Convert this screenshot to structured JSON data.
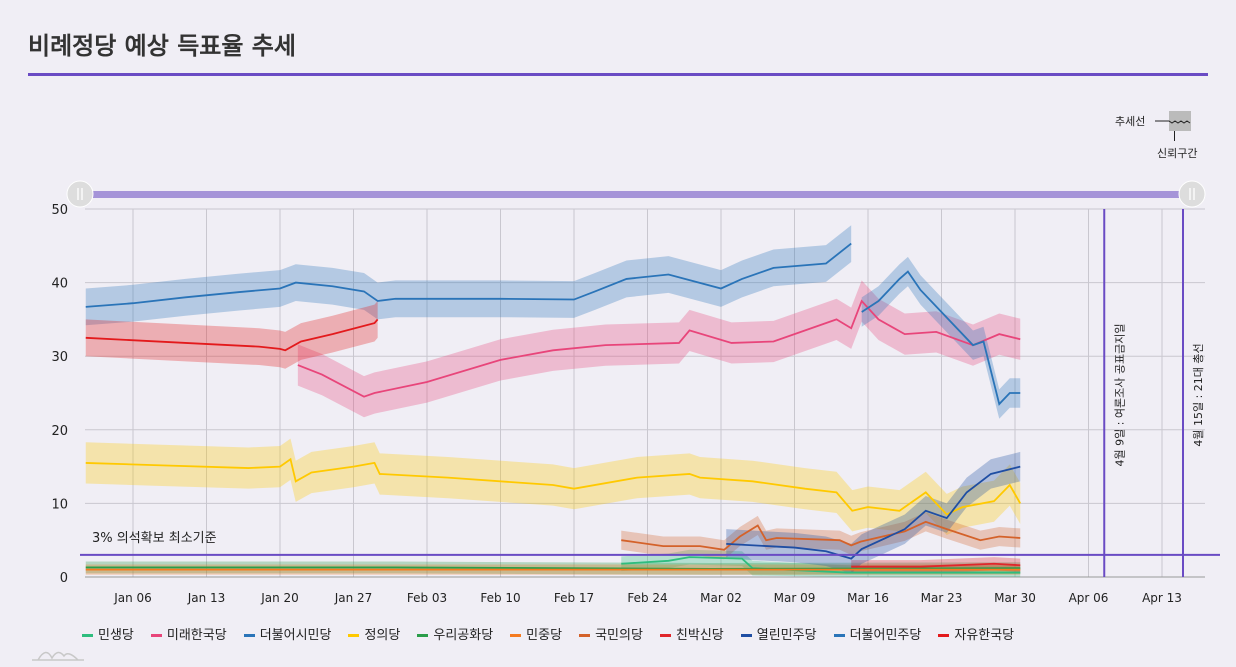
{
  "title": "비례정당 예상 득표율 추세",
  "trend_legend": {
    "line": "추세선",
    "band": "신뢰구간"
  },
  "chart_data": {
    "type": "line",
    "x_unit": "day of 2020 (0 = Jan 01)",
    "xlim": [
      0.4,
      107
    ],
    "ylim": [
      0,
      50
    ],
    "yticks": [
      0,
      10,
      20,
      30,
      40,
      50
    ],
    "xticks": [
      {
        "d": 5,
        "label": "Jan 06"
      },
      {
        "d": 12,
        "label": "Jan 13"
      },
      {
        "d": 19,
        "label": "Jan 20"
      },
      {
        "d": 26,
        "label": "Jan 27"
      },
      {
        "d": 33,
        "label": "Feb 03"
      },
      {
        "d": 40,
        "label": "Feb 10"
      },
      {
        "d": 47,
        "label": "Feb 17"
      },
      {
        "d": 54,
        "label": "Feb 24"
      },
      {
        "d": 61,
        "label": "Mar 02"
      },
      {
        "d": 68,
        "label": "Mar 09"
      },
      {
        "d": 75,
        "label": "Mar 16"
      },
      {
        "d": 82,
        "label": "Mar 23"
      },
      {
        "d": 89,
        "label": "Mar 30"
      },
      {
        "d": 96,
        "label": "Apr 06"
      },
      {
        "d": 103,
        "label": "Apr 13"
      }
    ],
    "threshold": {
      "value": 3,
      "label": "3% 의석확보 최소기준",
      "color": "#6a4bc4"
    },
    "events": [
      {
        "d": 97.5,
        "label": "4월 9일 : 여론조사 공표금지일"
      },
      {
        "d": 105,
        "label": "4월 15일 : 21대 총선"
      }
    ],
    "grid": true,
    "legend_position": "bottom",
    "series": [
      {
        "name": "민생당",
        "color": "#2ebd7e",
        "band": 1,
        "points": [
          [
            51.5,
            1.8
          ],
          [
            56,
            2.2
          ],
          [
            58,
            2.7
          ],
          [
            63,
            2.5
          ],
          [
            64,
            1.2
          ],
          [
            73,
            0.6
          ],
          [
            89.5,
            0.6
          ]
        ]
      },
      {
        "name": "미래한국당",
        "color": "#e8457a",
        "band": 2.8,
        "points": [
          [
            20.7,
            28.8
          ],
          [
            23,
            27.5
          ],
          [
            27,
            24.5
          ],
          [
            28,
            25
          ],
          [
            33,
            26.5
          ],
          [
            40,
            29.5
          ],
          [
            45,
            30.8
          ],
          [
            50,
            31.5
          ],
          [
            57,
            31.8
          ],
          [
            58,
            33.5
          ],
          [
            62,
            31.8
          ],
          [
            66,
            32
          ],
          [
            70,
            34
          ],
          [
            72,
            35
          ],
          [
            73.4,
            33.8
          ],
          [
            74.4,
            37.5
          ],
          [
            76,
            35
          ],
          [
            78.5,
            33
          ],
          [
            81.5,
            33.3
          ],
          [
            85,
            31.5
          ],
          [
            87.5,
            33
          ],
          [
            89.5,
            32.3
          ]
        ]
      },
      {
        "name": "더불어시민당",
        "color": "#2a74b8",
        "band": 2.5,
        "points": [
          [
            0.5,
            36.7
          ],
          [
            5,
            37.2
          ],
          [
            10,
            38
          ],
          [
            15,
            38.7
          ],
          [
            19,
            39.2
          ],
          [
            20.5,
            40
          ],
          [
            24,
            39.5
          ],
          [
            27,
            38.8
          ],
          [
            28.3,
            37.5
          ],
          [
            30,
            37.8
          ],
          [
            40,
            37.8
          ],
          [
            47,
            37.7
          ],
          [
            49,
            38.8
          ],
          [
            52,
            40.5
          ],
          [
            56,
            41.1
          ],
          [
            61,
            39.2
          ],
          [
            63,
            40.5
          ],
          [
            66,
            42
          ],
          [
            71,
            42.6
          ],
          [
            73.4,
            45.3
          ]
        ]
      },
      {
        "name": "정의당",
        "color": "#ffc900",
        "band": 2.8,
        "points": [
          [
            0.5,
            15.5
          ],
          [
            7,
            15.2
          ],
          [
            16,
            14.8
          ],
          [
            19,
            15
          ],
          [
            20,
            16
          ],
          [
            20.5,
            13
          ],
          [
            22,
            14.2
          ],
          [
            26,
            15
          ],
          [
            28,
            15.5
          ],
          [
            28.5,
            14
          ],
          [
            35,
            13.5
          ],
          [
            45,
            12.5
          ],
          [
            47,
            12
          ],
          [
            53,
            13.5
          ],
          [
            58,
            14
          ],
          [
            59,
            13.5
          ],
          [
            64,
            13
          ],
          [
            69,
            12
          ],
          [
            72,
            11.5
          ],
          [
            73.5,
            9
          ],
          [
            75,
            9.5
          ],
          [
            78,
            9
          ],
          [
            80.5,
            11.5
          ],
          [
            82.5,
            8.5
          ],
          [
            84,
            9.5
          ],
          [
            87,
            10.3
          ],
          [
            88.5,
            12.5
          ],
          [
            89.5,
            10
          ]
        ]
      },
      {
        "name": "우리공화당",
        "color": "#2a9d4a",
        "band": 0.8,
        "points": [
          [
            0.5,
            1.3
          ],
          [
            30,
            1.3
          ],
          [
            60,
            1.1
          ],
          [
            89.5,
            1.2
          ]
        ]
      },
      {
        "name": "민중당",
        "color": "#f57b20",
        "band": 0.7,
        "points": [
          [
            0.5,
            1
          ],
          [
            89.5,
            1
          ]
        ]
      },
      {
        "name": "국민의당",
        "color": "#d4622a",
        "band": 1.3,
        "points": [
          [
            51.5,
            5
          ],
          [
            55.5,
            4.2
          ],
          [
            59,
            4.2
          ],
          [
            61.3,
            3.7
          ],
          [
            62.8,
            5.5
          ],
          [
            64.5,
            7
          ],
          [
            65.3,
            5
          ],
          [
            66.3,
            5.3
          ],
          [
            72.3,
            5
          ],
          [
            73.4,
            4.3
          ],
          [
            74.3,
            4.8
          ],
          [
            78.5,
            6.2
          ],
          [
            80.5,
            7.5
          ],
          [
            82.5,
            6.5
          ],
          [
            85.7,
            5
          ],
          [
            87.5,
            5.5
          ],
          [
            89.5,
            5.3
          ]
        ]
      },
      {
        "name": "친박신당",
        "color": "#e0262b",
        "band": 0.9,
        "points": [
          [
            73.4,
            1.4
          ],
          [
            80,
            1.4
          ],
          [
            87,
            1.8
          ],
          [
            89.5,
            1.6
          ]
        ]
      },
      {
        "name": "열린민주당",
        "color": "#1f4ea3",
        "band": 2,
        "points": [
          [
            61.5,
            4.5
          ],
          [
            68,
            4
          ],
          [
            71,
            3.5
          ],
          [
            73.4,
            2.5
          ],
          [
            74.4,
            3.8
          ],
          [
            78.5,
            6.5
          ],
          [
            80.5,
            9
          ],
          [
            82.5,
            8
          ],
          [
            84.4,
            11.5
          ],
          [
            86.7,
            14
          ],
          [
            89.5,
            15
          ]
        ]
      },
      {
        "name": "더불어민주당",
        "color": "#2a74b8",
        "band": 2,
        "points": [
          [
            74.4,
            36
          ],
          [
            76,
            37.5
          ],
          [
            78,
            40.5
          ],
          [
            78.8,
            41.5
          ],
          [
            80,
            39
          ],
          [
            85,
            31.5
          ],
          [
            86,
            32
          ],
          [
            87.5,
            23.5
          ],
          [
            88.5,
            25
          ],
          [
            89.5,
            25
          ]
        ]
      },
      {
        "name": "자유한국당",
        "color": "#e31a1c",
        "band": 2.5,
        "points": [
          [
            0.5,
            32.5
          ],
          [
            10,
            31.8
          ],
          [
            17,
            31.3
          ],
          [
            19,
            31
          ],
          [
            19.5,
            30.8
          ],
          [
            21,
            32
          ],
          [
            24,
            33
          ],
          [
            28,
            34.5
          ],
          [
            28.3,
            35
          ]
        ]
      }
    ]
  }
}
